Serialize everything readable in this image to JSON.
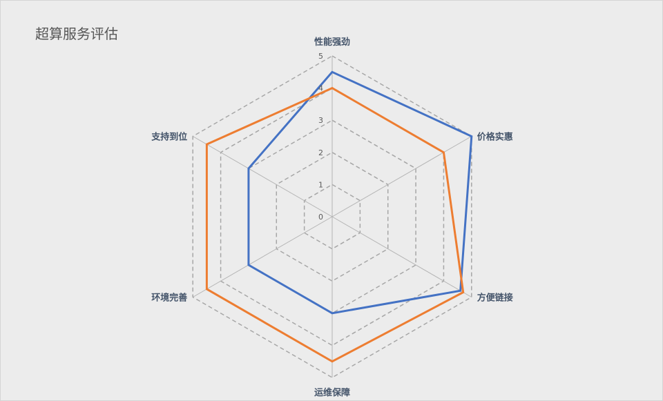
{
  "chart_data": {
    "type": "radar",
    "title": "超算服务评估",
    "categories": [
      "性能强劲",
      "价格实惠",
      "方便链接",
      "运维保障",
      "环境完善",
      "支持到位"
    ],
    "ticks": [
      "0",
      "1",
      "2",
      "3",
      "4",
      "5"
    ],
    "rmax": 5,
    "grid": true,
    "legend": "none",
    "series": [
      {
        "color": "#4472c4",
        "values": [
          4.5,
          5.0,
          4.6,
          3.0,
          3.0,
          3.0
        ]
      },
      {
        "color": "#ed7d31",
        "values": [
          4.0,
          4.0,
          4.7,
          4.5,
          4.5,
          4.5
        ]
      }
    ]
  }
}
